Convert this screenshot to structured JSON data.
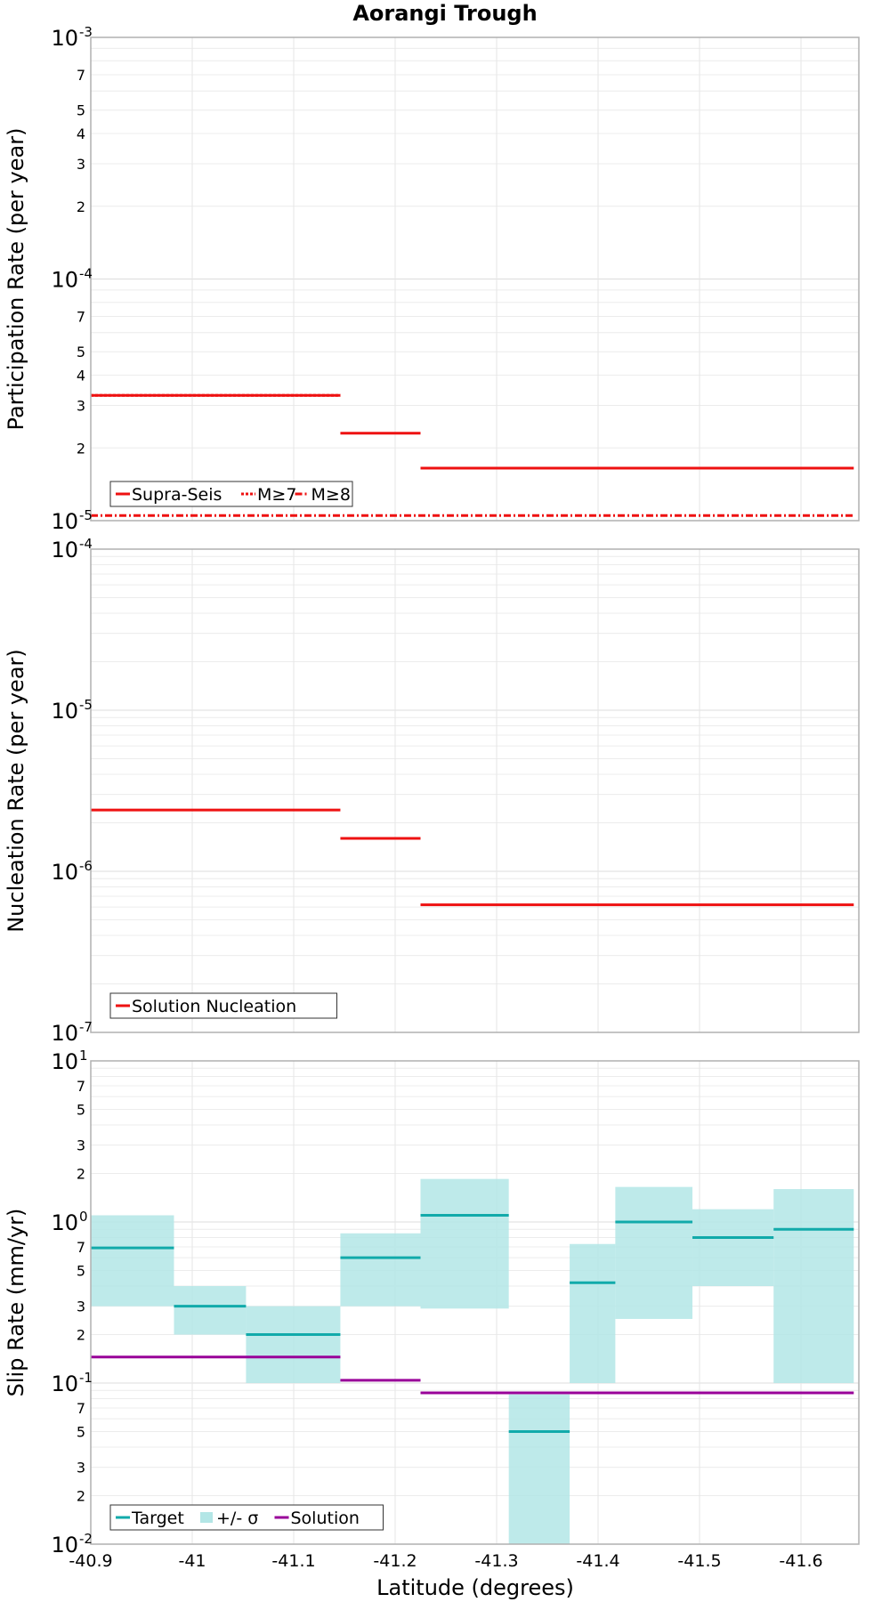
{
  "chart_data": {
    "title": "Aorangi Trough",
    "xlabel": "Latitude (degrees)",
    "x_ticks": [
      "-40.9",
      "-41",
      "-41.1",
      "-41.2",
      "-41.3",
      "-41.4",
      "-41.5",
      "-41.6"
    ],
    "xlim": [
      -40.9,
      -41.652
    ],
    "panels": [
      {
        "type": "line",
        "scale": "log",
        "ylabel": "Participation Rate (per year)",
        "ylim": [
          1e-05,
          0.001
        ],
        "major_ticks": [
          {
            "base": "10",
            "exp": "-5"
          },
          {
            "base": "10",
            "exp": "-4"
          },
          {
            "base": "10",
            "exp": "-3"
          }
        ],
        "minor_ticks": [
          "2",
          "3",
          "4",
          "5",
          "7"
        ],
        "legend": [
          "Supra-Seis",
          "M≥7",
          "M≥8"
        ],
        "series": [
          {
            "name": "Supra-Seis",
            "color": "#ee1111",
            "style": "solid",
            "segments": [
              {
                "x": [
                  -40.9,
                  -41.146
                ],
                "y": 3.3e-05
              },
              {
                "x": [
                  -41.146,
                  -41.225
                ],
                "y": 2.3e-05
              },
              {
                "x": [
                  -41.225,
                  -41.652
                ],
                "y": 1.65e-05
              }
            ]
          },
          {
            "name": "M≥7",
            "color": "#ee1111",
            "style": "dotted",
            "segments": [
              {
                "x": [
                  -40.9,
                  -41.146
                ],
                "y": 3.3e-05
              }
            ]
          },
          {
            "name": "M≥8",
            "color": "#ee1111",
            "style": "dashdot",
            "segments": [
              {
                "x": [
                  -40.9,
                  -41.652
                ],
                "y": 1.05e-05
              }
            ]
          }
        ]
      },
      {
        "type": "line",
        "scale": "log",
        "ylabel": "Nucleation Rate (per year)",
        "ylim": [
          1e-07,
          0.0001
        ],
        "major_ticks": [
          {
            "base": "10",
            "exp": "-7"
          },
          {
            "base": "10",
            "exp": "-6"
          },
          {
            "base": "10",
            "exp": "-5"
          },
          {
            "base": "10",
            "exp": "-4"
          }
        ],
        "minor_ticks": [],
        "legend": [
          "Solution Nucleation"
        ],
        "series": [
          {
            "name": "Solution Nucleation",
            "color": "#ee1111",
            "style": "solid",
            "segments": [
              {
                "x": [
                  -40.9,
                  -41.146
                ],
                "y": 2.4e-06
              },
              {
                "x": [
                  -41.146,
                  -41.225
                ],
                "y": 1.6e-06
              },
              {
                "x": [
                  -41.225,
                  -41.652
                ],
                "y": 6.2e-07
              }
            ]
          }
        ]
      },
      {
        "type": "line",
        "scale": "log",
        "ylabel": "Slip Rate (mm/yr)",
        "ylim": [
          0.01,
          10
        ],
        "major_ticks": [
          {
            "base": "10",
            "exp": "-2"
          },
          {
            "base": "10",
            "exp": "-1"
          },
          {
            "base": "10",
            "exp": "0"
          },
          {
            "base": "10",
            "exp": "1"
          }
        ],
        "minor_ticks": [
          "2",
          "3",
          "5",
          "7"
        ],
        "legend": [
          "Target",
          "+/- σ",
          "Solution"
        ],
        "bands": {
          "name": "+/- σ",
          "color": "#b3e6e6",
          "segments": [
            {
              "x": [
                -40.9,
                -40.982
              ],
              "low": 0.3,
              "high": 1.1
            },
            {
              "x": [
                -40.982,
                -41.053
              ],
              "low": 0.2,
              "high": 0.4
            },
            {
              "x": [
                -41.053,
                -41.146
              ],
              "low": 0.1,
              "high": 0.3
            },
            {
              "x": [
                -41.146,
                -41.225
              ],
              "low": 0.3,
              "high": 0.85
            },
            {
              "x": [
                -41.225,
                -41.312
              ],
              "low": 0.29,
              "high": 1.85
            },
            {
              "x": [
                -41.312,
                -41.372
              ],
              "low": 0.01,
              "high": 0.085
            },
            {
              "x": [
                -41.372,
                -41.417
              ],
              "low": 0.1,
              "high": 0.73
            },
            {
              "x": [
                -41.417,
                -41.493
              ],
              "low": 0.25,
              "high": 1.65
            },
            {
              "x": [
                -41.493,
                -41.573
              ],
              "low": 0.4,
              "high": 1.2
            },
            {
              "x": [
                -41.573,
                -41.652
              ],
              "low": 0.1,
              "high": 1.6
            }
          ]
        },
        "series": [
          {
            "name": "Target",
            "color": "#11aaaa",
            "style": "solid",
            "segments": [
              {
                "x": [
                  -40.9,
                  -40.982
                ],
                "y": 0.69
              },
              {
                "x": [
                  -40.982,
                  -41.053
                ],
                "y": 0.3
              },
              {
                "x": [
                  -41.053,
                  -41.146
                ],
                "y": 0.2
              },
              {
                "x": [
                  -41.146,
                  -41.225
                ],
                "y": 0.6
              },
              {
                "x": [
                  -41.225,
                  -41.312
                ],
                "y": 1.1
              },
              {
                "x": [
                  -41.312,
                  -41.372
                ],
                "y": 0.05
              },
              {
                "x": [
                  -41.372,
                  -41.417
                ],
                "y": 0.42
              },
              {
                "x": [
                  -41.417,
                  -41.493
                ],
                "y": 1.0
              },
              {
                "x": [
                  -41.493,
                  -41.573
                ],
                "y": 0.8
              },
              {
                "x": [
                  -41.573,
                  -41.652
                ],
                "y": 0.9
              }
            ]
          },
          {
            "name": "Solution",
            "color": "#990099",
            "style": "solid",
            "segments": [
              {
                "x": [
                  -40.9,
                  -41.146
                ],
                "y": 0.145
              },
              {
                "x": [
                  -41.146,
                  -41.225
                ],
                "y": 0.104
              },
              {
                "x": [
                  -41.225,
                  -41.652
                ],
                "y": 0.087
              }
            ]
          }
        ]
      }
    ]
  }
}
